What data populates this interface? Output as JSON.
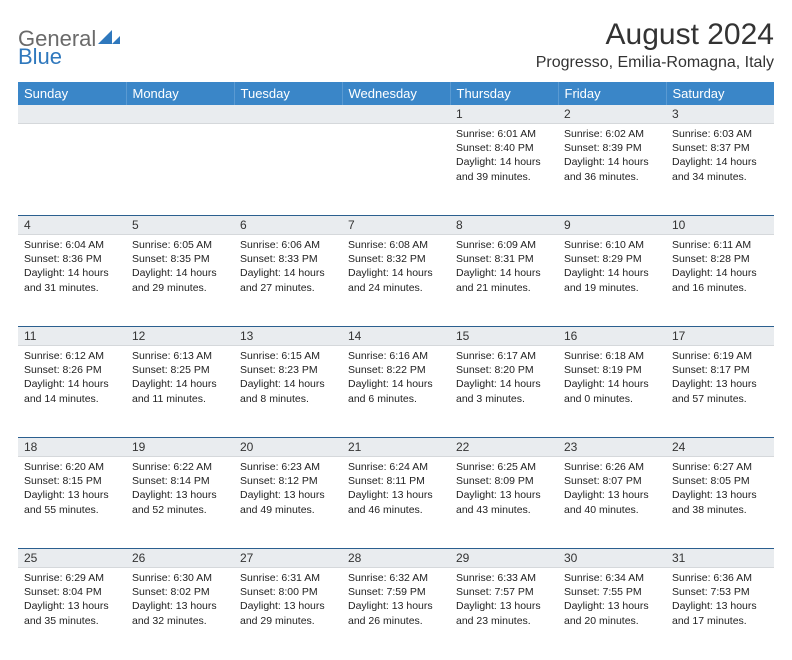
{
  "logo": {
    "word1": "General",
    "word2": "Blue"
  },
  "title": "August 2024",
  "location": "Progresso, Emilia-Romagna, Italy",
  "colors": {
    "header_bg": "#3a86c8",
    "header_text": "#ffffff",
    "daynum_bg": "#e9ecef",
    "cell_border": "#2b5f8f",
    "logo_gray": "#6a6a6a",
    "logo_blue": "#2f78bd",
    "text": "#333333"
  },
  "day_headers": [
    "Sunday",
    "Monday",
    "Tuesday",
    "Wednesday",
    "Thursday",
    "Friday",
    "Saturday"
  ],
  "weeks": [
    {
      "nums": [
        "",
        "",
        "",
        "",
        "1",
        "2",
        "3"
      ],
      "cells": [
        null,
        null,
        null,
        null,
        {
          "sunrise": "6:01 AM",
          "sunset": "8:40 PM",
          "daylight": "14 hours and 39 minutes."
        },
        {
          "sunrise": "6:02 AM",
          "sunset": "8:39 PM",
          "daylight": "14 hours and 36 minutes."
        },
        {
          "sunrise": "6:03 AM",
          "sunset": "8:37 PM",
          "daylight": "14 hours and 34 minutes."
        }
      ]
    },
    {
      "nums": [
        "4",
        "5",
        "6",
        "7",
        "8",
        "9",
        "10"
      ],
      "cells": [
        {
          "sunrise": "6:04 AM",
          "sunset": "8:36 PM",
          "daylight": "14 hours and 31 minutes."
        },
        {
          "sunrise": "6:05 AM",
          "sunset": "8:35 PM",
          "daylight": "14 hours and 29 minutes."
        },
        {
          "sunrise": "6:06 AM",
          "sunset": "8:33 PM",
          "daylight": "14 hours and 27 minutes."
        },
        {
          "sunrise": "6:08 AM",
          "sunset": "8:32 PM",
          "daylight": "14 hours and 24 minutes."
        },
        {
          "sunrise": "6:09 AM",
          "sunset": "8:31 PM",
          "daylight": "14 hours and 21 minutes."
        },
        {
          "sunrise": "6:10 AM",
          "sunset": "8:29 PM",
          "daylight": "14 hours and 19 minutes."
        },
        {
          "sunrise": "6:11 AM",
          "sunset": "8:28 PM",
          "daylight": "14 hours and 16 minutes."
        }
      ]
    },
    {
      "nums": [
        "11",
        "12",
        "13",
        "14",
        "15",
        "16",
        "17"
      ],
      "cells": [
        {
          "sunrise": "6:12 AM",
          "sunset": "8:26 PM",
          "daylight": "14 hours and 14 minutes."
        },
        {
          "sunrise": "6:13 AM",
          "sunset": "8:25 PM",
          "daylight": "14 hours and 11 minutes."
        },
        {
          "sunrise": "6:15 AM",
          "sunset": "8:23 PM",
          "daylight": "14 hours and 8 minutes."
        },
        {
          "sunrise": "6:16 AM",
          "sunset": "8:22 PM",
          "daylight": "14 hours and 6 minutes."
        },
        {
          "sunrise": "6:17 AM",
          "sunset": "8:20 PM",
          "daylight": "14 hours and 3 minutes."
        },
        {
          "sunrise": "6:18 AM",
          "sunset": "8:19 PM",
          "daylight": "14 hours and 0 minutes."
        },
        {
          "sunrise": "6:19 AM",
          "sunset": "8:17 PM",
          "daylight": "13 hours and 57 minutes."
        }
      ]
    },
    {
      "nums": [
        "18",
        "19",
        "20",
        "21",
        "22",
        "23",
        "24"
      ],
      "cells": [
        {
          "sunrise": "6:20 AM",
          "sunset": "8:15 PM",
          "daylight": "13 hours and 55 minutes."
        },
        {
          "sunrise": "6:22 AM",
          "sunset": "8:14 PM",
          "daylight": "13 hours and 52 minutes."
        },
        {
          "sunrise": "6:23 AM",
          "sunset": "8:12 PM",
          "daylight": "13 hours and 49 minutes."
        },
        {
          "sunrise": "6:24 AM",
          "sunset": "8:11 PM",
          "daylight": "13 hours and 46 minutes."
        },
        {
          "sunrise": "6:25 AM",
          "sunset": "8:09 PM",
          "daylight": "13 hours and 43 minutes."
        },
        {
          "sunrise": "6:26 AM",
          "sunset": "8:07 PM",
          "daylight": "13 hours and 40 minutes."
        },
        {
          "sunrise": "6:27 AM",
          "sunset": "8:05 PM",
          "daylight": "13 hours and 38 minutes."
        }
      ]
    },
    {
      "nums": [
        "25",
        "26",
        "27",
        "28",
        "29",
        "30",
        "31"
      ],
      "cells": [
        {
          "sunrise": "6:29 AM",
          "sunset": "8:04 PM",
          "daylight": "13 hours and 35 minutes."
        },
        {
          "sunrise": "6:30 AM",
          "sunset": "8:02 PM",
          "daylight": "13 hours and 32 minutes."
        },
        {
          "sunrise": "6:31 AM",
          "sunset": "8:00 PM",
          "daylight": "13 hours and 29 minutes."
        },
        {
          "sunrise": "6:32 AM",
          "sunset": "7:59 PM",
          "daylight": "13 hours and 26 minutes."
        },
        {
          "sunrise": "6:33 AM",
          "sunset": "7:57 PM",
          "daylight": "13 hours and 23 minutes."
        },
        {
          "sunrise": "6:34 AM",
          "sunset": "7:55 PM",
          "daylight": "13 hours and 20 minutes."
        },
        {
          "sunrise": "6:36 AM",
          "sunset": "7:53 PM",
          "daylight": "13 hours and 17 minutes."
        }
      ]
    }
  ],
  "labels": {
    "sunrise": "Sunrise: ",
    "sunset": "Sunset: ",
    "daylight": "Daylight: "
  }
}
